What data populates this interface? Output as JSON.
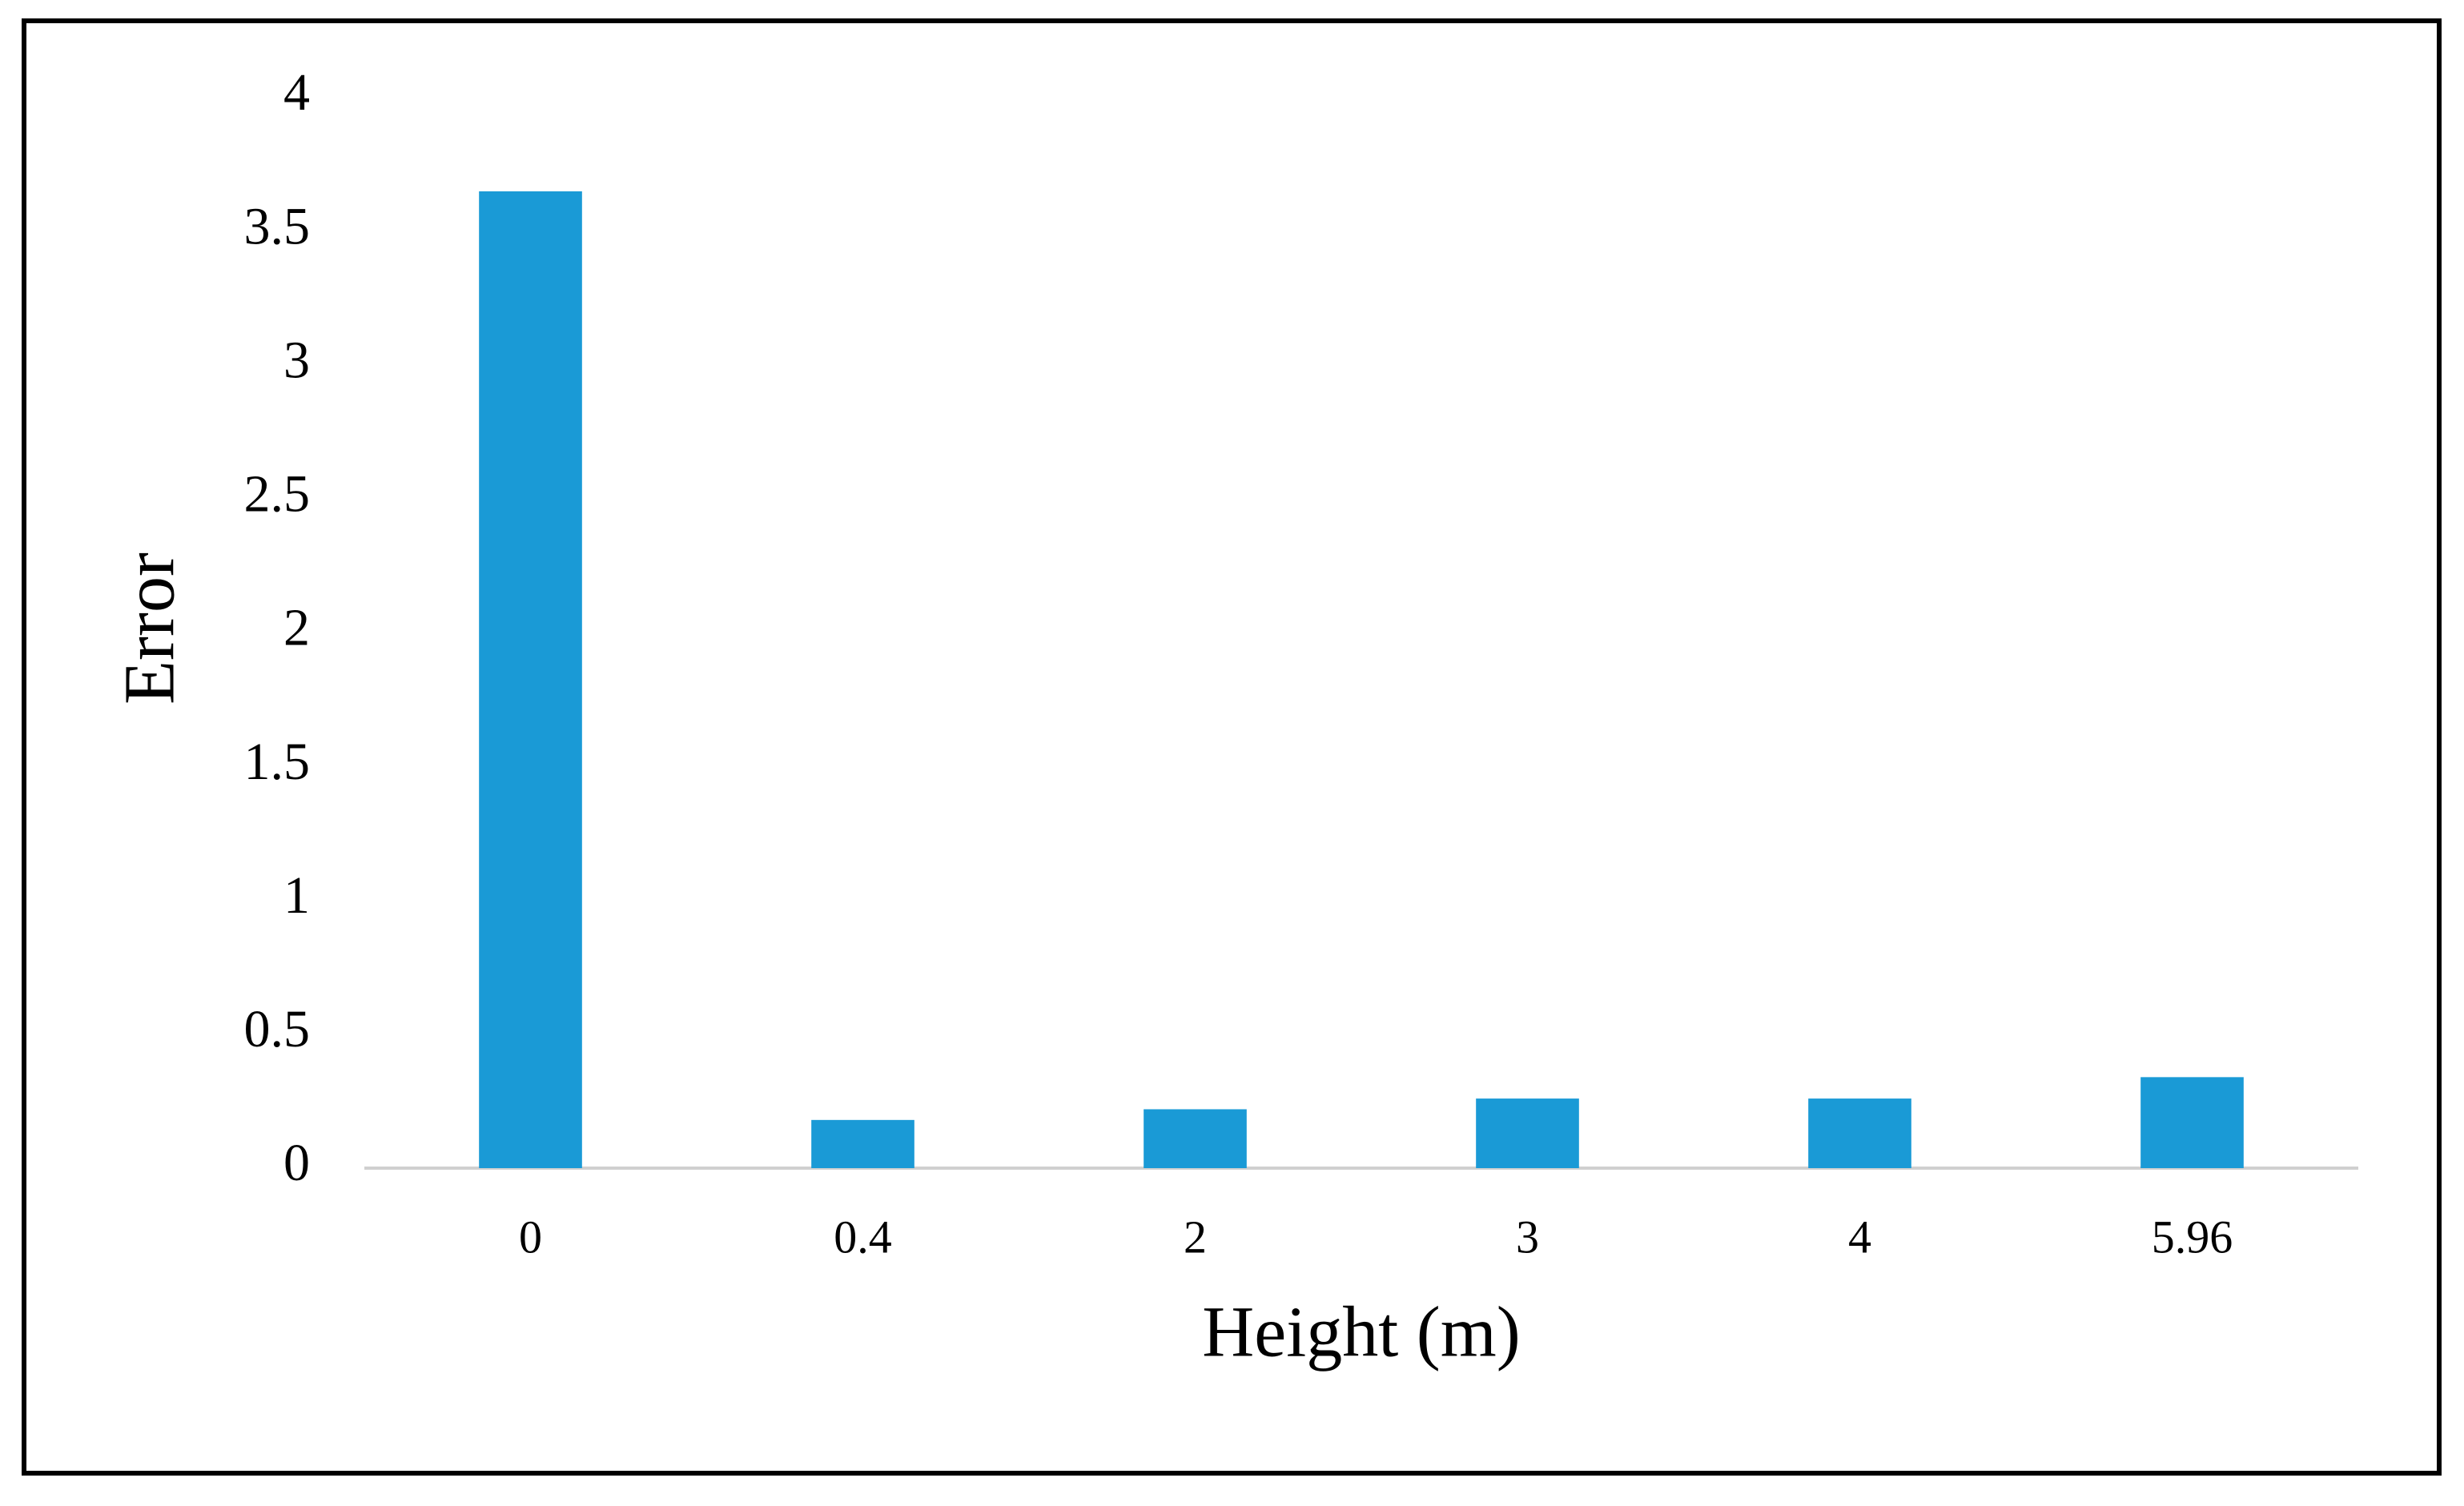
{
  "chart_data": {
    "type": "bar",
    "x_label": "Height (m)",
    "y_label": "Error",
    "categories": [
      "0",
      "0.4",
      "2",
      "3",
      "4",
      "5.96"
    ],
    "values": [
      3.65,
      0.18,
      0.22,
      0.26,
      0.26,
      0.34
    ],
    "color": "#1a9ad6",
    "ylim": [
      0,
      4
    ],
    "yticks": [
      0,
      0.5,
      1,
      1.5,
      2,
      2.5,
      3,
      3.5,
      4
    ],
    "grid": false
  }
}
